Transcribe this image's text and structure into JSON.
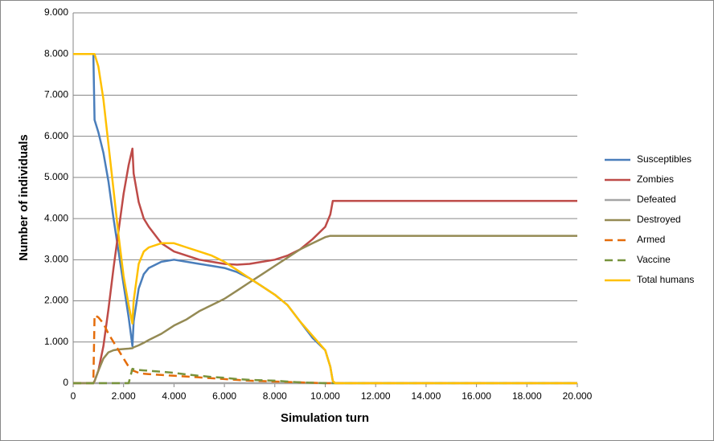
{
  "chart_data": {
    "type": "line",
    "x_label": "Simulation turn",
    "y_label": "Number of individuals",
    "x": [
      0,
      800,
      850,
      1000,
      1200,
      1400,
      1600,
      1800,
      2000,
      2200,
      2350,
      2400,
      2600,
      2800,
      3000,
      3500,
      4000,
      4500,
      5000,
      5500,
      6000,
      6500,
      7000,
      7500,
      8000,
      8500,
      9000,
      9500,
      10000,
      10200,
      10300,
      10400,
      12000,
      14000,
      16000,
      18000,
      20000
    ],
    "series": [
      {
        "name": "Susceptibles",
        "color": "#4a7ebb",
        "dashed": false,
        "values": [
          8000,
          8000,
          6400,
          6100,
          5600,
          4900,
          4000,
          3200,
          2400,
          1600,
          900,
          1500,
          2300,
          2650,
          2800,
          2950,
          3000,
          2950,
          2900,
          2850,
          2800,
          2700,
          2550,
          2350,
          2150,
          1900,
          1500,
          1100,
          800,
          400,
          50,
          0,
          0,
          0,
          0,
          0,
          0
        ]
      },
      {
        "name": "Zombies",
        "color": "#be4b48",
        "dashed": false,
        "values": [
          0,
          0,
          50,
          300,
          900,
          1800,
          2800,
          3700,
          4600,
          5300,
          5700,
          5100,
          4400,
          4000,
          3800,
          3400,
          3200,
          3100,
          3000,
          2950,
          2900,
          2880,
          2900,
          2950,
          3000,
          3100,
          3250,
          3500,
          3800,
          4100,
          4430,
          4430,
          4430,
          4430,
          4430,
          4430,
          4430
        ]
      },
      {
        "name": "Defeated",
        "color": "#a5a5a5",
        "dashed": false,
        "values": [
          0,
          0,
          0,
          0,
          0,
          0,
          0,
          0,
          0,
          0,
          0,
          0,
          0,
          0,
          0,
          0,
          0,
          0,
          0,
          0,
          0,
          0,
          0,
          0,
          0,
          0,
          0,
          0,
          0,
          0,
          0,
          0,
          0,
          0,
          0,
          0,
          0
        ]
      },
      {
        "name": "Destroyed",
        "color": "#948a54",
        "dashed": false,
        "values": [
          0,
          0,
          50,
          300,
          600,
          750,
          800,
          820,
          830,
          840,
          850,
          870,
          920,
          980,
          1050,
          1200,
          1400,
          1550,
          1750,
          1900,
          2050,
          2250,
          2450,
          2650,
          2850,
          3050,
          3250,
          3400,
          3550,
          3580,
          3580,
          3580,
          3580,
          3580,
          3580,
          3580,
          3580
        ]
      },
      {
        "name": "Armed",
        "color": "#e46c0a",
        "dashed": true,
        "values": [
          0,
          0,
          1650,
          1600,
          1450,
          1200,
          1000,
          800,
          600,
          400,
          300,
          300,
          250,
          230,
          220,
          200,
          180,
          160,
          140,
          120,
          100,
          80,
          60,
          50,
          40,
          30,
          20,
          10,
          0,
          0,
          0,
          0,
          0,
          0,
          0,
          0,
          0
        ]
      },
      {
        "name": "Vaccine",
        "color": "#77933c",
        "dashed": true,
        "values": [
          0,
          0,
          0,
          0,
          0,
          0,
          0,
          0,
          0,
          0,
          350,
          340,
          320,
          310,
          300,
          280,
          250,
          210,
          180,
          150,
          130,
          100,
          80,
          70,
          60,
          40,
          20,
          10,
          0,
          0,
          0,
          0,
          0,
          0,
          0,
          0,
          0
        ]
      },
      {
        "name": "Total humans",
        "color": "#ffc000",
        "dashed": false,
        "values": [
          8000,
          8000,
          8000,
          7700,
          6900,
          5800,
          4700,
          3600,
          2600,
          1900,
          1450,
          2000,
          2900,
          3200,
          3300,
          3400,
          3400,
          3300,
          3200,
          3100,
          2950,
          2750,
          2550,
          2350,
          2150,
          1900,
          1500,
          1150,
          800,
          400,
          50,
          0,
          0,
          0,
          0,
          0,
          0
        ]
      }
    ],
    "xlim": [
      0,
      20000
    ],
    "xticks": [
      0,
      {
        "value": 2000,
        "label": "2.000"
      },
      {
        "value": 4000,
        "label": "4.000"
      },
      {
        "value": 6000,
        "label": "6.000"
      },
      {
        "value": 8000,
        "label": "8.000"
      },
      {
        "value": 10000,
        "label": "10.000"
      },
      {
        "value": 12000,
        "label": "12.000"
      },
      {
        "value": 14000,
        "label": "14.000"
      },
      {
        "value": 16000,
        "label": "16.000"
      },
      {
        "value": 18000,
        "label": "18.000"
      },
      {
        "value": 20000,
        "label": "20.000"
      }
    ],
    "ylim": [
      0,
      9000
    ],
    "yticks": [
      0,
      {
        "value": 1000,
        "label": "1.000"
      },
      {
        "value": 2000,
        "label": "2.000"
      },
      {
        "value": 3000,
        "label": "3.000"
      },
      {
        "value": 4000,
        "label": "4.000"
      },
      {
        "value": 5000,
        "label": "5.000"
      },
      {
        "value": 6000,
        "label": "6.000"
      },
      {
        "value": 7000,
        "label": "7.000"
      },
      {
        "value": 8000,
        "label": "8.000"
      },
      {
        "value": 9000,
        "label": "9.000"
      }
    ],
    "grid": true,
    "legend": "right"
  }
}
